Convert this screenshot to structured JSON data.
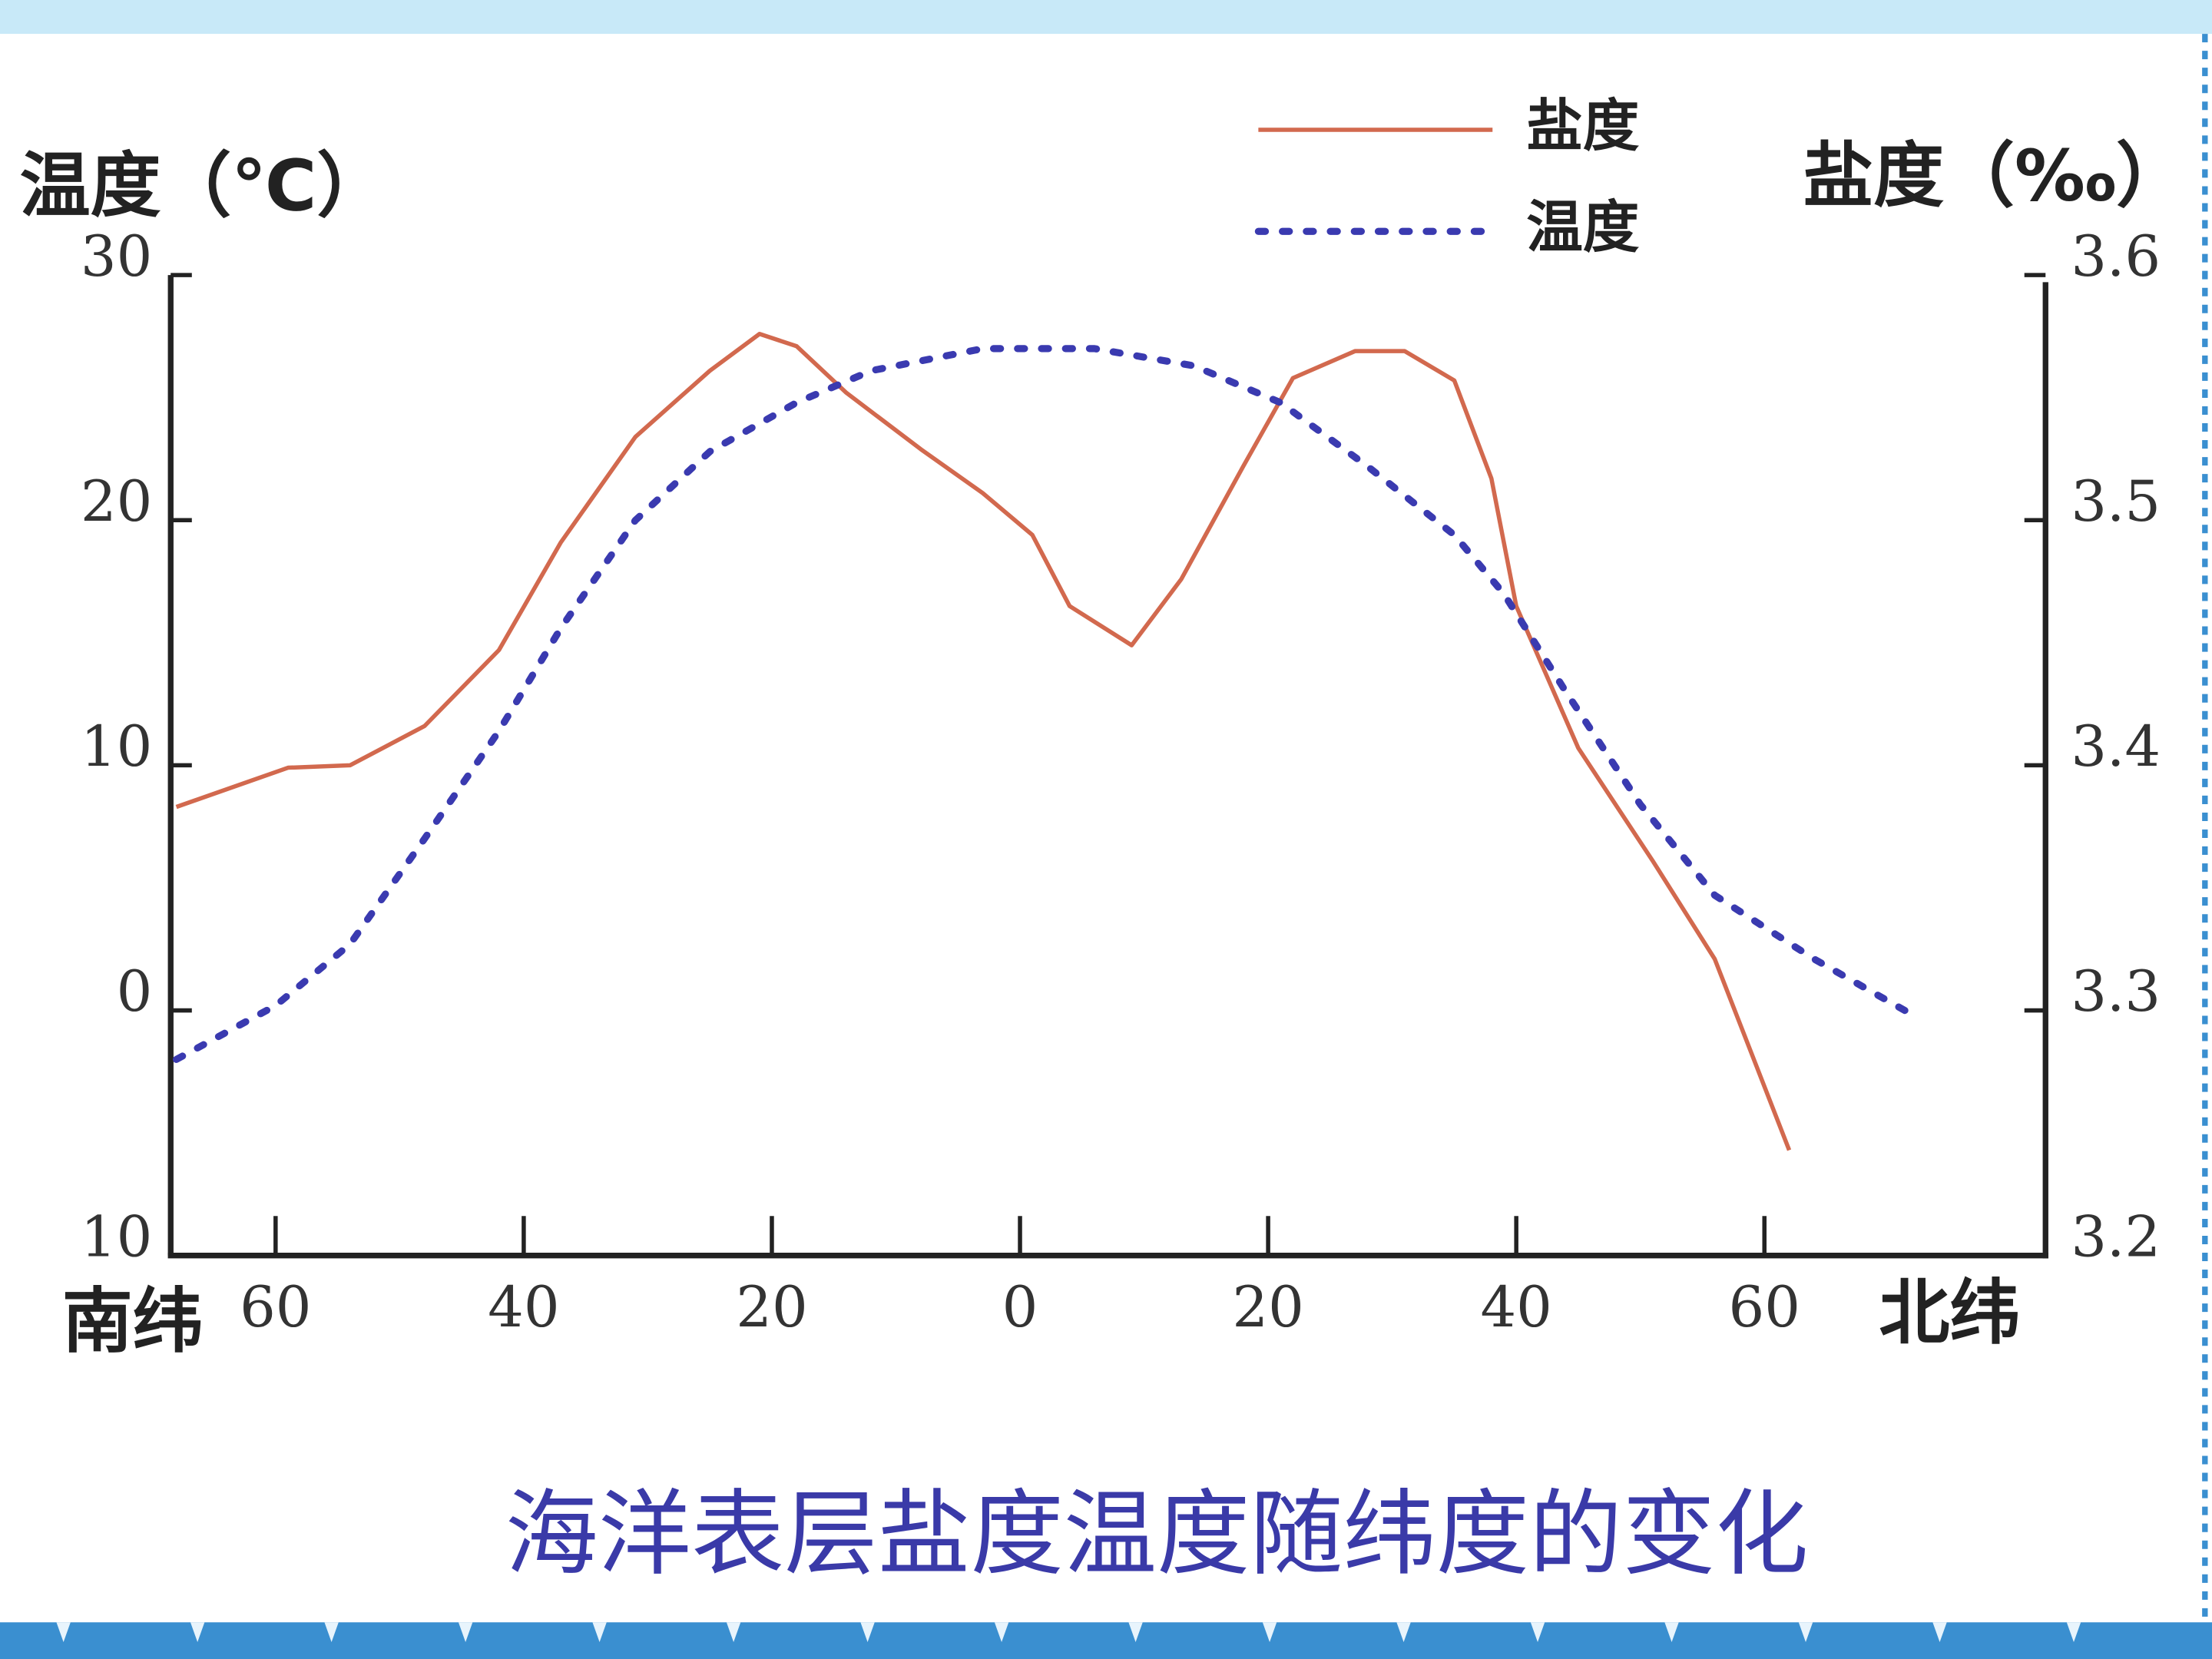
{
  "chart_data": {
    "type": "line",
    "title": "海洋表层盐度温度随纬度的变化",
    "y_label": "温度（℃）",
    "y2_label": "盐度（‰）",
    "x_label_left": "南纬",
    "x_label_right": "北纬",
    "xlim": [
      -68,
      83
    ],
    "ylim": [
      -10,
      30
    ],
    "y2lim": [
      3.2,
      3.6
    ],
    "xticks": [
      {
        "value": -60,
        "label": "60"
      },
      {
        "value": -40,
        "label": "40"
      },
      {
        "value": -20,
        "label": "20"
      },
      0,
      20,
      40,
      60
    ],
    "yticks": [
      {
        "value": -10,
        "label": "10"
      },
      0,
      10,
      20,
      30
    ],
    "y2ticks": [
      3.2,
      3.3,
      3.4,
      3.5,
      3.6
    ],
    "legend": "top-right",
    "series": [
      {
        "name": "盐度",
        "color": "#d2694e",
        "axis": "y2",
        "x": [
          -68,
          -59,
          -54,
          -48,
          -42,
          -37,
          -31,
          -25,
          -21,
          -18,
          -14,
          -8,
          -3,
          1,
          4,
          9,
          13,
          18,
          22,
          27,
          31,
          35,
          38,
          40,
          45,
          51,
          56,
          62
        ],
        "values": [
          3.383,
          3.399,
          3.4,
          3.416,
          3.447,
          3.491,
          3.534,
          3.561,
          3.576,
          3.571,
          3.552,
          3.529,
          3.511,
          3.494,
          3.465,
          3.449,
          3.476,
          3.522,
          3.558,
          3.569,
          3.569,
          3.557,
          3.517,
          3.465,
          3.407,
          3.361,
          3.321,
          3.243
        ]
      },
      {
        "name": "温度",
        "color": "#3a3ab0",
        "x": [
          -68,
          -60,
          -54,
          -48,
          -42,
          -37,
          -31,
          -25,
          -18,
          -12,
          -3,
          6,
          14,
          21,
          28,
          35,
          39,
          44,
          50,
          56,
          64,
          72
        ],
        "values": [
          -2,
          0.2,
          2.7,
          7,
          11.4,
          15.6,
          20,
          22.8,
          24.8,
          26.1,
          27,
          27,
          26.3,
          24.8,
          22.2,
          19.4,
          17,
          13,
          8.4,
          4.7,
          2.1,
          -0.2
        ]
      }
    ]
  }
}
